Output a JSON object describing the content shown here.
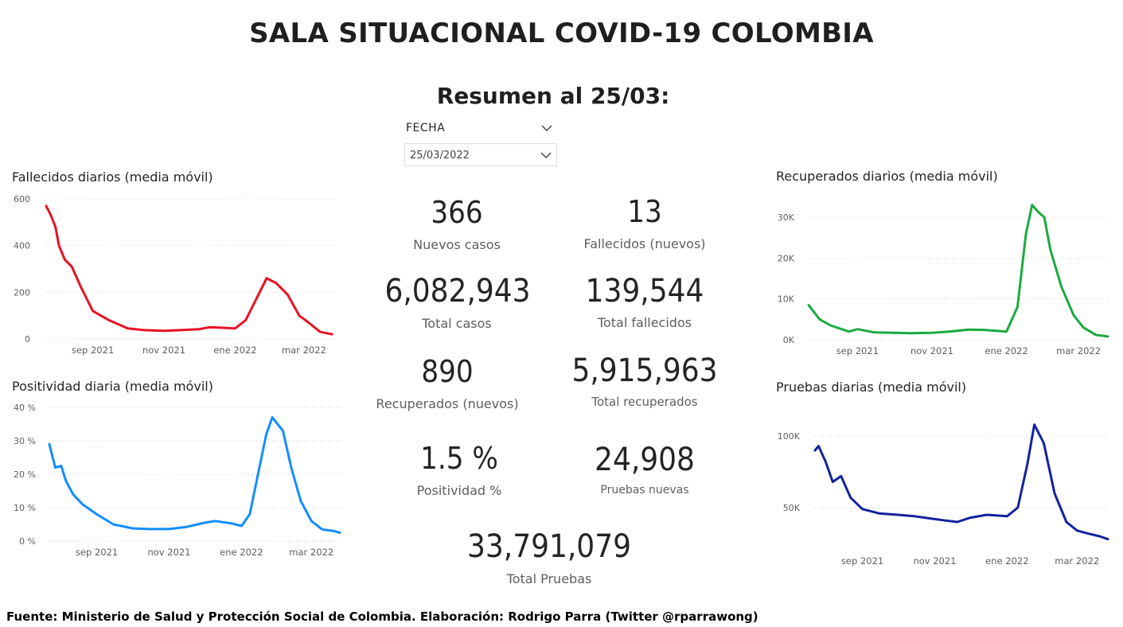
{
  "title": "SALA SITUACIONAL COVID-19 COLOMBIA",
  "subtitle": "Resumen al 25/03:",
  "slicer": {
    "header": "FECHA",
    "value": "25/03/2022",
    "icon": "chevron-down-icon"
  },
  "kpis": {
    "nuevos_casos": {
      "value": "366",
      "label": "Nuevos casos"
    },
    "fallecidos_nuevos": {
      "value": "13",
      "label": "Fallecidos (nuevos)"
    },
    "total_casos": {
      "value": "6,082,943",
      "label": "Total casos"
    },
    "total_fallecidos": {
      "value": "139,544",
      "label": "Total fallecidos"
    },
    "recuperados_nuevos": {
      "value": "890",
      "label": "Recuperados (nuevos)"
    },
    "total_recuperados": {
      "value": "5,915,963",
      "label": "Total recuperados"
    },
    "positividad": {
      "value": "1.5 %",
      "label": "Positividad %"
    },
    "pruebas_nuevas": {
      "value": "24,908",
      "label": "Pruebas nuevas"
    },
    "total_pruebas": {
      "value": "33,791,079",
      "label": "Total Pruebas"
    }
  },
  "footer": "Fuente: Ministerio de Salud y Protección Social de Colombia. Elaboración: Rodrigo Parra (Twitter @rparrawong)",
  "chart_data": [
    {
      "id": "fallecidos",
      "type": "line",
      "title": "Fallecidos diarios (media móvil)",
      "color": "#e81123",
      "ylim": [
        0,
        600
      ],
      "yticks": [
        0,
        200,
        400,
        600
      ],
      "ytick_labels": [
        "0",
        "200",
        "400",
        "600"
      ],
      "xlim": [
        "2021-07-23",
        "2022-03-27"
      ],
      "xticks": [
        "2021-09-01",
        "2021-11-01",
        "2022-01-01",
        "2022-03-01"
      ],
      "xtick_labels": [
        "sep 2021",
        "nov 2021",
        "ene 2022",
        "mar 2022"
      ],
      "grid": true,
      "series": [
        {
          "x": [
            "2021-07-23",
            "2021-07-27",
            "2021-07-31",
            "2021-08-03",
            "2021-08-08",
            "2021-08-14",
            "2021-08-22",
            "2021-09-01",
            "2021-09-15",
            "2021-10-01",
            "2021-10-15",
            "2021-11-01",
            "2021-11-15",
            "2021-12-01",
            "2021-12-10",
            "2021-12-20",
            "2022-01-01",
            "2022-01-10",
            "2022-01-20",
            "2022-01-28",
            "2022-02-05",
            "2022-02-15",
            "2022-02-25",
            "2022-03-05",
            "2022-03-15",
            "2022-03-25"
          ],
          "y": [
            570,
            530,
            480,
            400,
            340,
            310,
            220,
            120,
            80,
            45,
            38,
            35,
            38,
            42,
            50,
            48,
            45,
            80,
            180,
            260,
            240,
            190,
            100,
            70,
            30,
            20
          ]
        }
      ]
    },
    {
      "id": "positividad",
      "type": "line",
      "title": "Positividad diaria (media móvil)",
      "color": "#118dff",
      "ylim": [
        0,
        40
      ],
      "yticks": [
        0,
        10,
        20,
        30,
        40
      ],
      "ytick_labels": [
        "0 %",
        "10 %",
        "20 %",
        "30 %",
        "40 %"
      ],
      "xlim": [
        "2021-07-23",
        "2022-03-27"
      ],
      "xticks": [
        "2021-09-01",
        "2021-11-01",
        "2022-01-01",
        "2022-03-01"
      ],
      "xtick_labels": [
        "sep 2021",
        "nov 2021",
        "ene 2022",
        "mar 2022"
      ],
      "grid": true,
      "series": [
        {
          "x": [
            "2021-07-23",
            "2021-07-28",
            "2021-08-02",
            "2021-08-06",
            "2021-08-12",
            "2021-08-20",
            "2021-09-01",
            "2021-09-15",
            "2021-10-01",
            "2021-10-15",
            "2021-11-01",
            "2021-11-15",
            "2021-12-01",
            "2021-12-10",
            "2021-12-25",
            "2022-01-01",
            "2022-01-08",
            "2022-01-15",
            "2022-01-22",
            "2022-01-27",
            "2022-02-05",
            "2022-02-12",
            "2022-02-20",
            "2022-03-01",
            "2022-03-10",
            "2022-03-20",
            "2022-03-25"
          ],
          "y": [
            29,
            22,
            22.5,
            18,
            14,
            11,
            8,
            5,
            3.8,
            3.6,
            3.6,
            4.2,
            5.5,
            6,
            5.2,
            4.5,
            8,
            20,
            32,
            37,
            33,
            22,
            12,
            6,
            3.5,
            3,
            2.5
          ]
        }
      ]
    },
    {
      "id": "recuperados",
      "type": "line",
      "title": "Recuperados diarios (media móvil)",
      "color": "#1aab40",
      "ylim": [
        0,
        30000
      ],
      "yticks": [
        0,
        10000,
        20000,
        30000
      ],
      "ytick_labels": [
        "0K",
        "10K",
        "20K",
        "30K"
      ],
      "xlim": [
        "2021-07-23",
        "2022-03-27"
      ],
      "xticks": [
        "2021-09-01",
        "2021-11-01",
        "2022-01-01",
        "2022-03-01"
      ],
      "xtick_labels": [
        "sep 2021",
        "nov 2021",
        "ene 2022",
        "mar 2022"
      ],
      "grid": true,
      "series": [
        {
          "x": [
            "2021-07-23",
            "2021-08-01",
            "2021-08-10",
            "2021-08-20",
            "2021-08-25",
            "2021-09-01",
            "2021-09-15",
            "2021-10-01",
            "2021-10-15",
            "2021-11-01",
            "2021-11-15",
            "2021-12-01",
            "2021-12-15",
            "2022-01-01",
            "2022-01-10",
            "2022-01-17",
            "2022-01-22",
            "2022-01-28",
            "2022-02-01",
            "2022-02-06",
            "2022-02-15",
            "2022-02-25",
            "2022-03-05",
            "2022-03-15",
            "2022-03-25"
          ],
          "y": [
            8500,
            5000,
            3500,
            2500,
            2000,
            2600,
            1800,
            1700,
            1600,
            1700,
            2000,
            2500,
            2400,
            2000,
            8000,
            26000,
            33000,
            31000,
            30000,
            22000,
            13000,
            6000,
            3000,
            1200,
            800
          ]
        }
      ]
    },
    {
      "id": "pruebas",
      "type": "line",
      "title": "Pruebas diarias (media móvil)",
      "color": "#12239e",
      "ylim": [
        0,
        100000
      ],
      "yticks": [
        50000,
        100000
      ],
      "ytick_labels": [
        "50K",
        "100K"
      ],
      "xlim": [
        "2021-07-23",
        "2022-03-27"
      ],
      "xticks": [
        "2021-09-01",
        "2021-11-01",
        "2022-01-01",
        "2022-03-01"
      ],
      "xtick_labels": [
        "sep 2021",
        "nov 2021",
        "ene 2022",
        "mar 2022"
      ],
      "grid": true,
      "series": [
        {
          "x": [
            "2021-07-23",
            "2021-07-26",
            "2021-08-01",
            "2021-08-07",
            "2021-08-14",
            "2021-08-22",
            "2021-09-01",
            "2021-09-15",
            "2021-10-01",
            "2021-10-15",
            "2021-11-01",
            "2021-11-10",
            "2021-11-20",
            "2021-12-01",
            "2021-12-15",
            "2022-01-01",
            "2022-01-10",
            "2022-01-18",
            "2022-01-24",
            "2022-02-01",
            "2022-02-10",
            "2022-02-20",
            "2022-03-01",
            "2022-03-10",
            "2022-03-20",
            "2022-03-27"
          ],
          "y": [
            90000,
            93000,
            82000,
            68000,
            72000,
            57000,
            49000,
            46000,
            45000,
            44000,
            42000,
            41000,
            40000,
            43000,
            45000,
            44000,
            50000,
            80000,
            108000,
            95000,
            60000,
            40000,
            34000,
            32000,
            30000,
            28000
          ]
        }
      ]
    }
  ]
}
